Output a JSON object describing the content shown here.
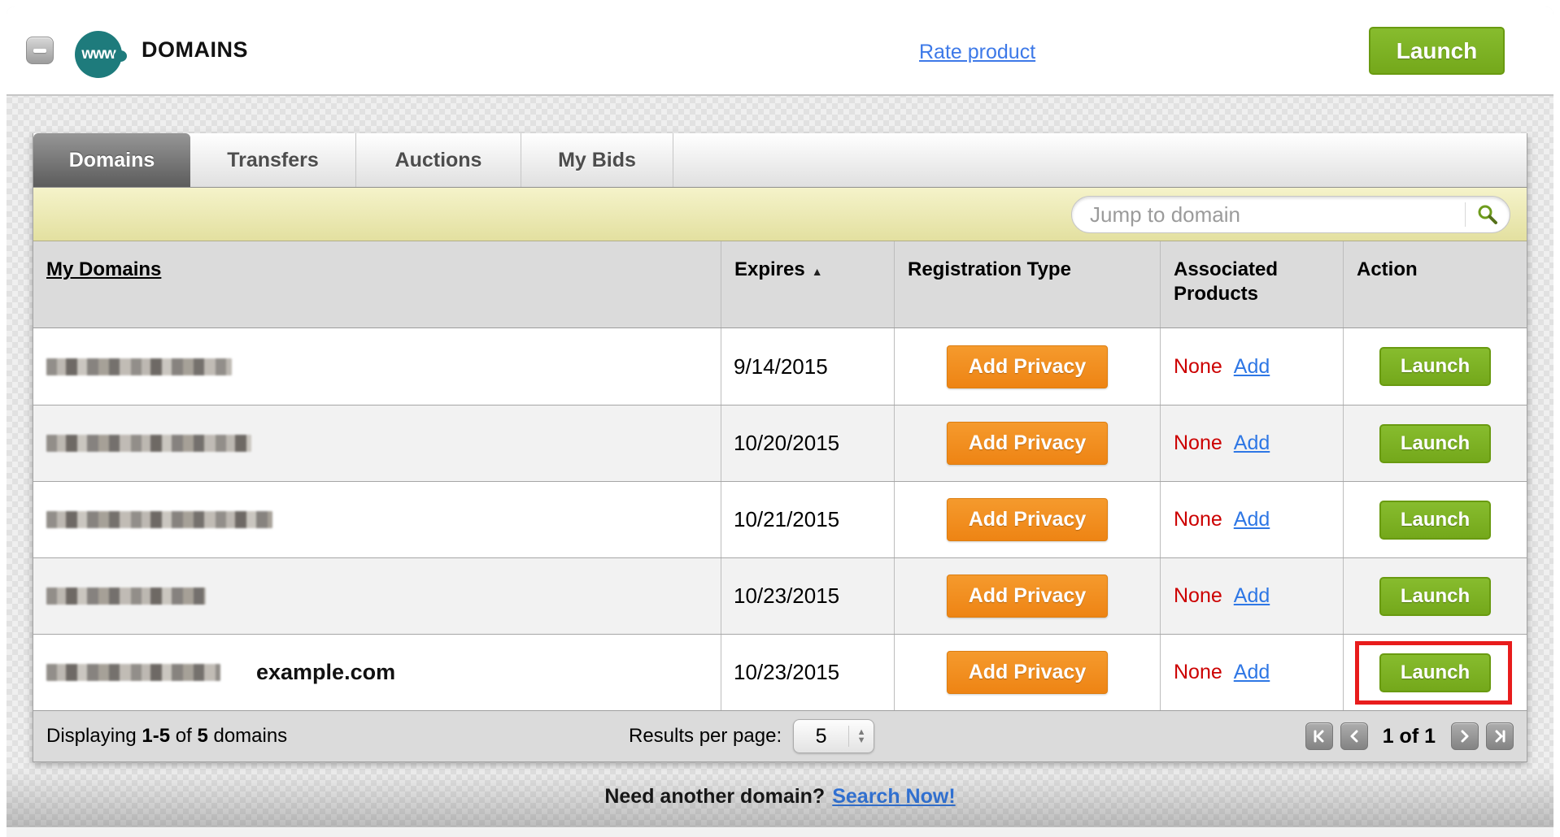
{
  "header": {
    "title": "DOMAINS",
    "product_icon_label": "www",
    "rate_product_link": "Rate product",
    "launch_button": "Launch"
  },
  "tabs": {
    "items": [
      {
        "label": "Domains",
        "active": true
      },
      {
        "label": "Transfers",
        "active": false
      },
      {
        "label": "Auctions",
        "active": false
      },
      {
        "label": "My Bids",
        "active": false
      }
    ]
  },
  "search": {
    "placeholder": "Jump to domain"
  },
  "table": {
    "columns": {
      "my_domains": "My Domains",
      "expires": "Expires",
      "sort_indicator": "▲",
      "registration_type": "Registration Type",
      "associated_products": "Associated Products",
      "action": "Action"
    },
    "rows": [
      {
        "domain_redacted": true,
        "blur_width": 228,
        "expires": "9/14/2015",
        "registration_button": "Add Privacy",
        "associated_value": "None",
        "associated_link": "Add",
        "action_button": "Launch",
        "highlighted": false
      },
      {
        "domain_redacted": true,
        "blur_width": 252,
        "expires": "10/20/2015",
        "registration_button": "Add Privacy",
        "associated_value": "None",
        "associated_link": "Add",
        "action_button": "Launch",
        "highlighted": false
      },
      {
        "domain_redacted": true,
        "blur_width": 278,
        "expires": "10/21/2015",
        "registration_button": "Add Privacy",
        "associated_value": "None",
        "associated_link": "Add",
        "action_button": "Launch",
        "highlighted": false
      },
      {
        "domain_redacted": true,
        "blur_width": 196,
        "expires": "10/23/2015",
        "registration_button": "Add Privacy",
        "associated_value": "None",
        "associated_link": "Add",
        "action_button": "Launch",
        "highlighted": false
      },
      {
        "domain_redacted": true,
        "blur_width": 214,
        "expires": "10/23/2015",
        "registration_button": "Add Privacy",
        "associated_value": "None",
        "associated_link": "Add",
        "action_button": "Launch",
        "highlighted": true,
        "annotation": "example.com"
      }
    ]
  },
  "footer": {
    "displaying_label": "Displaying",
    "range": "1-5",
    "of_label": "of",
    "total": "5",
    "domains_label": "domains",
    "results_per_page_label": "Results per page:",
    "results_per_page_value": "5",
    "page_indicator": "1 of 1"
  },
  "bottom": {
    "prompt": "Need another domain?",
    "link_label": "Search Now!"
  },
  "colors": {
    "accent_green": "#7CB121",
    "accent_orange": "#F0891D",
    "link_blue": "#2E77E5",
    "alert_red": "#CC0000",
    "annotation_red": "#E81C1C",
    "brand_teal": "#1E7B7C"
  }
}
